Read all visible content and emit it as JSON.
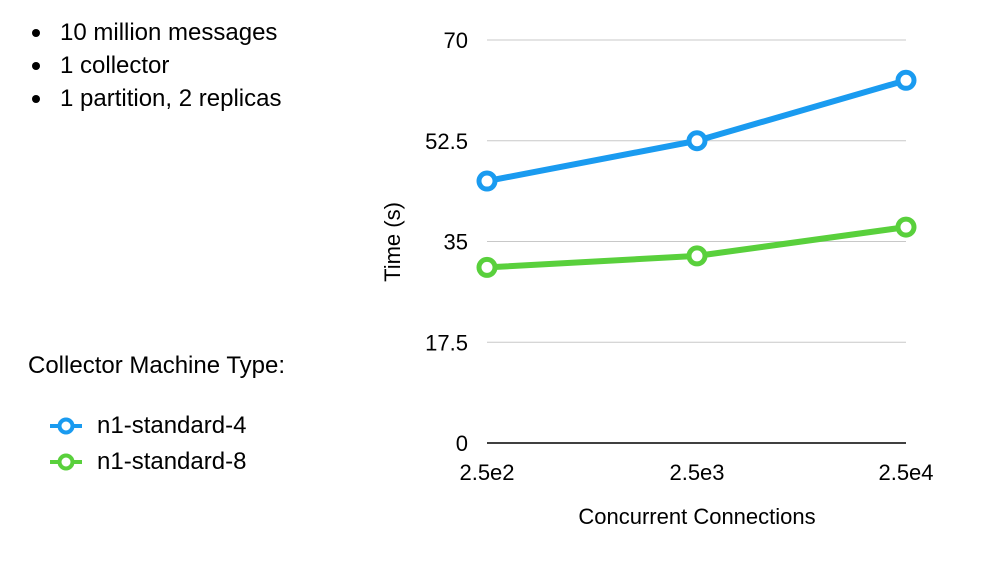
{
  "notes": [
    "10 million messages",
    "1 collector",
    "1 partition, 2 replicas"
  ],
  "legend_title": "Collector Machine Type:",
  "chart_data": {
    "type": "line",
    "categories": [
      "2.5e2",
      "2.5e3",
      "2.5e4"
    ],
    "series": [
      {
        "name": "n1-standard-4",
        "values": [
          45.5,
          52.5,
          63.0
        ],
        "color": "#1a9bf0"
      },
      {
        "name": "n1-standard-8",
        "values": [
          30.5,
          32.5,
          37.5
        ],
        "color": "#59d03c"
      }
    ],
    "xlabel": "Concurrent Connections",
    "ylabel": "Time (s)",
    "ylim": [
      0,
      70
    ],
    "yticks": [
      "0",
      "17.5",
      "35",
      "52.5",
      "70"
    ],
    "grid": true,
    "legend_position": "left"
  }
}
